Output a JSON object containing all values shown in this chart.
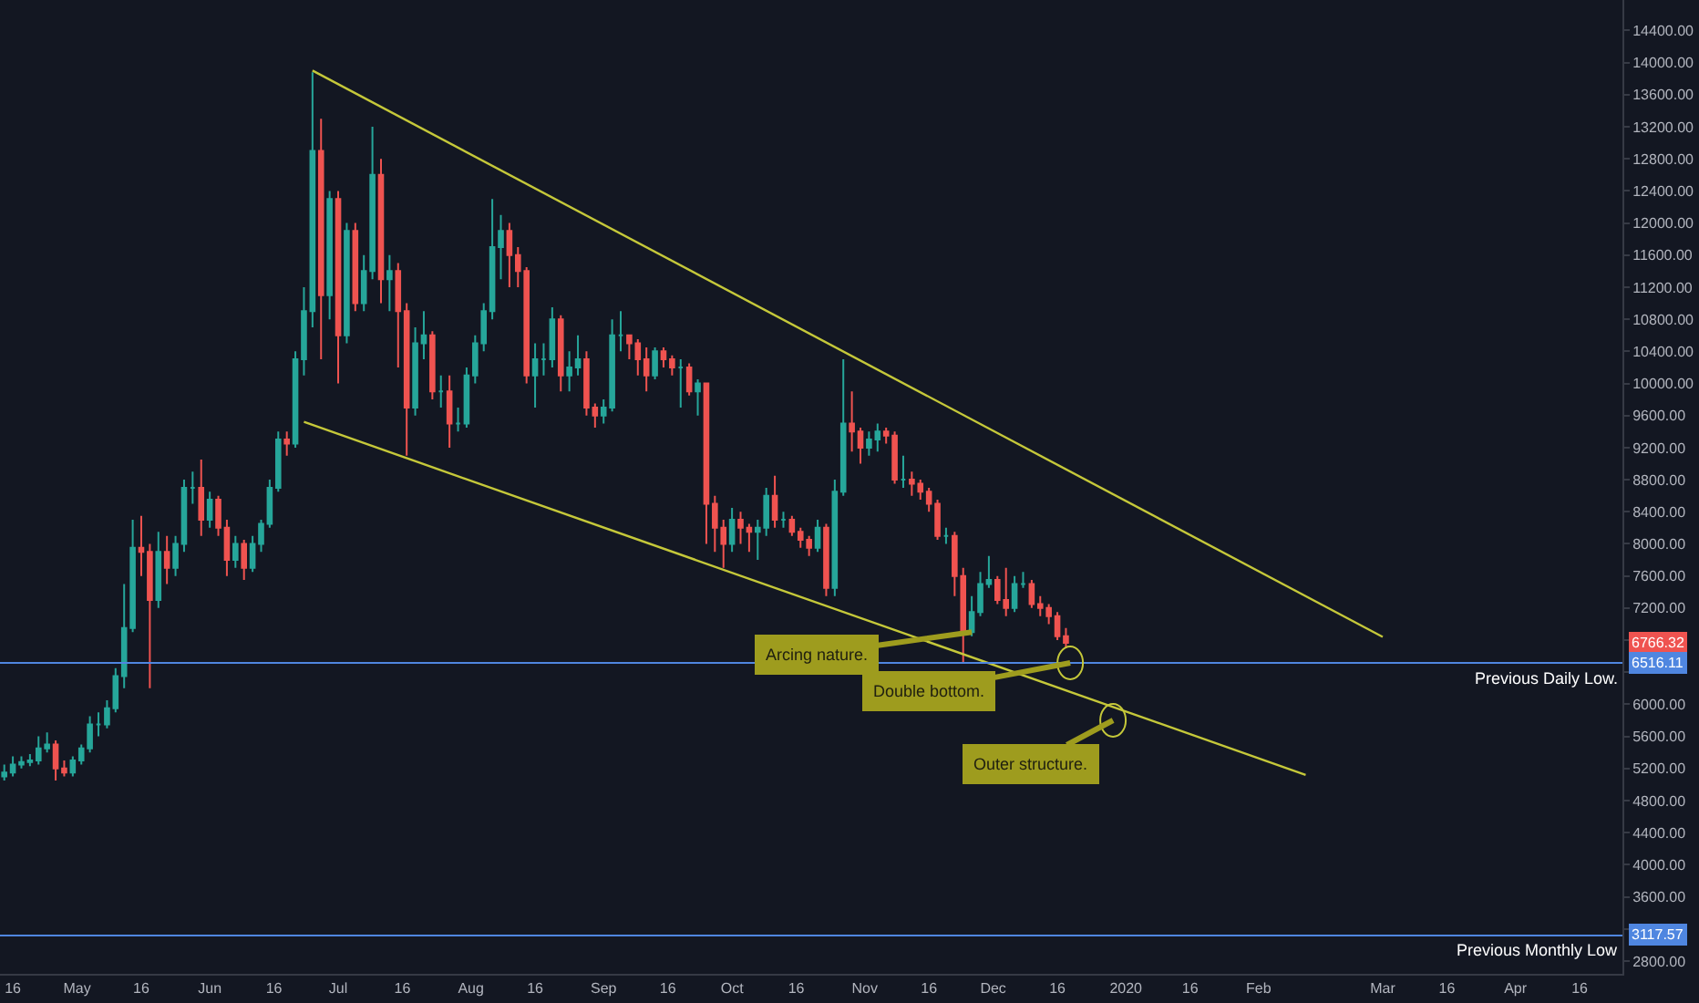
{
  "chart_data": {
    "type": "candlestick",
    "x": [
      "2019-04-14",
      "2019-04-16",
      "2019-04-18",
      "2019-04-20",
      "2019-04-22",
      "2019-04-24",
      "2019-04-26",
      "2019-04-28",
      "2019-04-30",
      "2019-05-02",
      "2019-05-04",
      "2019-05-06",
      "2019-05-08",
      "2019-05-10",
      "2019-05-12",
      "2019-05-14",
      "2019-05-16",
      "2019-05-18",
      "2019-05-20",
      "2019-05-22",
      "2019-05-24",
      "2019-05-26",
      "2019-05-28",
      "2019-05-30",
      "2019-06-01",
      "2019-06-03",
      "2019-06-05",
      "2019-06-07",
      "2019-06-09",
      "2019-06-11",
      "2019-06-13",
      "2019-06-15",
      "2019-06-17",
      "2019-06-19",
      "2019-06-21",
      "2019-06-23",
      "2019-06-25",
      "2019-06-27",
      "2019-06-29",
      "2019-07-01",
      "2019-07-03",
      "2019-07-05",
      "2019-07-07",
      "2019-07-09",
      "2019-07-11",
      "2019-07-13",
      "2019-07-15",
      "2019-07-17",
      "2019-07-19",
      "2019-07-21",
      "2019-07-23",
      "2019-07-25",
      "2019-07-27",
      "2019-07-29",
      "2019-07-31",
      "2019-08-02",
      "2019-08-04",
      "2019-08-06",
      "2019-08-08",
      "2019-08-10",
      "2019-08-12",
      "2019-08-14",
      "2019-08-16",
      "2019-08-18",
      "2019-08-20",
      "2019-08-22",
      "2019-08-24",
      "2019-08-26",
      "2019-08-28",
      "2019-08-30",
      "2019-09-01",
      "2019-09-03",
      "2019-09-05",
      "2019-09-07",
      "2019-09-09",
      "2019-09-11",
      "2019-09-13",
      "2019-09-15",
      "2019-09-17",
      "2019-09-19",
      "2019-09-21",
      "2019-09-23",
      "2019-09-25",
      "2019-09-27",
      "2019-09-29",
      "2019-10-01",
      "2019-10-03",
      "2019-10-05",
      "2019-10-07",
      "2019-10-09",
      "2019-10-11",
      "2019-10-13",
      "2019-10-15",
      "2019-10-17",
      "2019-10-19",
      "2019-10-21",
      "2019-10-23",
      "2019-10-25",
      "2019-10-27",
      "2019-10-29",
      "2019-10-31",
      "2019-11-02",
      "2019-11-04",
      "2019-11-06",
      "2019-11-08",
      "2019-11-10",
      "2019-11-12",
      "2019-11-14",
      "2019-11-16",
      "2019-11-18",
      "2019-11-20",
      "2019-11-22",
      "2019-11-24",
      "2019-11-26",
      "2019-11-28",
      "2019-11-30",
      "2019-12-02",
      "2019-12-04",
      "2019-12-06",
      "2019-12-08",
      "2019-12-10",
      "2019-12-12",
      "2019-12-14",
      "2019-12-16",
      "2019-12-18"
    ],
    "ohlc": [
      [
        5100,
        5250,
        5050,
        5150
      ],
      [
        5150,
        5350,
        5100,
        5250
      ],
      [
        5250,
        5350,
        5200,
        5280
      ],
      [
        5280,
        5380,
        5230,
        5300
      ],
      [
        5300,
        5600,
        5250,
        5450
      ],
      [
        5450,
        5650,
        5400,
        5500
      ],
      [
        5500,
        5550,
        5050,
        5200
      ],
      [
        5200,
        5300,
        5100,
        5150
      ],
      [
        5150,
        5350,
        5100,
        5300
      ],
      [
        5300,
        5500,
        5250,
        5450
      ],
      [
        5450,
        5850,
        5400,
        5750
      ],
      [
        5750,
        5900,
        5600,
        5750
      ],
      [
        5750,
        6050,
        5700,
        5950
      ],
      [
        5950,
        6450,
        5900,
        6350
      ],
      [
        6350,
        7500,
        6200,
        6950
      ],
      [
        6950,
        8300,
        6900,
        7950
      ],
      [
        7950,
        8350,
        7600,
        7900
      ],
      [
        7900,
        8000,
        6200,
        7300
      ],
      [
        7300,
        8150,
        7200,
        7900
      ],
      [
        7900,
        8100,
        7500,
        7700
      ],
      [
        7700,
        8100,
        7600,
        8000
      ],
      [
        8000,
        8800,
        7900,
        8700
      ],
      [
        8700,
        8900,
        8500,
        8700
      ],
      [
        8700,
        9050,
        8100,
        8300
      ],
      [
        8300,
        8650,
        8200,
        8550
      ],
      [
        8550,
        8600,
        8100,
        8200
      ],
      [
        8200,
        8300,
        7600,
        7800
      ],
      [
        7800,
        8100,
        7700,
        8000
      ],
      [
        8000,
        8050,
        7550,
        7700
      ],
      [
        7700,
        8100,
        7650,
        8000
      ],
      [
        8000,
        8300,
        7900,
        8250
      ],
      [
        8250,
        8800,
        8200,
        8700
      ],
      [
        8700,
        9400,
        8650,
        9300
      ],
      [
        9300,
        9400,
        9100,
        9250
      ],
      [
        9250,
        10400,
        9200,
        10300
      ],
      [
        10300,
        11200,
        10100,
        10900
      ],
      [
        10900,
        13880,
        10700,
        12900
      ],
      [
        12900,
        13300,
        10300,
        11100
      ],
      [
        11100,
        12400,
        10800,
        12300
      ],
      [
        12300,
        12400,
        10000,
        10600
      ],
      [
        10600,
        12000,
        10500,
        11900
      ],
      [
        11900,
        12000,
        10900,
        11000
      ],
      [
        11000,
        11600,
        10900,
        11400
      ],
      [
        11400,
        13200,
        11300,
        12600
      ],
      [
        12600,
        12800,
        11000,
        11300
      ],
      [
        11300,
        11600,
        10900,
        11400
      ],
      [
        11400,
        11500,
        10200,
        10900
      ],
      [
        10900,
        11000,
        9100,
        9700
      ],
      [
        9700,
        10700,
        9600,
        10500
      ],
      [
        10500,
        10900,
        10300,
        10600
      ],
      [
        10600,
        10650,
        9800,
        9900
      ],
      [
        9900,
        10100,
        9700,
        9900
      ],
      [
        9900,
        10100,
        9200,
        9500
      ],
      [
        9500,
        9700,
        9400,
        9500
      ],
      [
        9500,
        10200,
        9450,
        10100
      ],
      [
        10100,
        10600,
        10000,
        10500
      ],
      [
        10500,
        11000,
        10400,
        10900
      ],
      [
        10900,
        12300,
        10800,
        11700
      ],
      [
        11700,
        12100,
        11300,
        11900
      ],
      [
        11900,
        12000,
        11200,
        11600
      ],
      [
        11600,
        11700,
        11200,
        11400
      ],
      [
        11400,
        11450,
        10000,
        10100
      ],
      [
        10100,
        10500,
        9700,
        10300
      ],
      [
        10300,
        10500,
        10100,
        10300
      ],
      [
        10300,
        10950,
        10200,
        10800
      ],
      [
        10800,
        10850,
        9900,
        10100
      ],
      [
        10100,
        10400,
        9900,
        10200
      ],
      [
        10200,
        10600,
        10100,
        10300
      ],
      [
        10300,
        10400,
        9600,
        9700
      ],
      [
        9700,
        9750,
        9450,
        9600
      ],
      [
        9600,
        9800,
        9500,
        9700
      ],
      [
        9700,
        10800,
        9650,
        10600
      ],
      [
        10600,
        10900,
        10400,
        10600
      ],
      [
        10600,
        10600,
        10300,
        10500
      ],
      [
        10500,
        10550,
        10100,
        10300
      ],
      [
        10300,
        10450,
        9900,
        10100
      ],
      [
        10100,
        10450,
        10050,
        10400
      ],
      [
        10400,
        10450,
        10200,
        10300
      ],
      [
        10300,
        10350,
        10100,
        10200
      ],
      [
        10200,
        10300,
        9700,
        10200
      ],
      [
        10200,
        10250,
        9850,
        9900
      ],
      [
        9900,
        10050,
        9600,
        10000
      ],
      [
        10000,
        10000,
        8000,
        8500
      ],
      [
        8500,
        8600,
        7900,
        8200
      ],
      [
        8200,
        8300,
        7700,
        8000
      ],
      [
        8000,
        8450,
        7900,
        8300
      ],
      [
        8300,
        8400,
        8000,
        8200
      ],
      [
        8200,
        8250,
        7900,
        8150
      ],
      [
        8150,
        8300,
        7800,
        8200
      ],
      [
        8200,
        8700,
        8100,
        8600
      ],
      [
        8600,
        8850,
        8200,
        8300
      ],
      [
        8300,
        8400,
        8200,
        8300
      ],
      [
        8300,
        8350,
        8100,
        8150
      ],
      [
        8150,
        8200,
        7950,
        8050
      ],
      [
        8050,
        8100,
        7850,
        7950
      ],
      [
        7950,
        8300,
        7900,
        8200
      ],
      [
        8200,
        8250,
        7350,
        7450
      ],
      [
        7450,
        8800,
        7350,
        8650
      ],
      [
        8650,
        10300,
        8600,
        9500
      ],
      [
        9500,
        9900,
        9150,
        9400
      ],
      [
        9400,
        9450,
        9000,
        9200
      ],
      [
        9200,
        9400,
        9100,
        9300
      ],
      [
        9300,
        9500,
        9150,
        9400
      ],
      [
        9400,
        9450,
        9250,
        9350
      ],
      [
        9350,
        9400,
        8750,
        8800
      ],
      [
        8800,
        9100,
        8700,
        8800
      ],
      [
        8800,
        8900,
        8600,
        8750
      ],
      [
        8750,
        8800,
        8550,
        8650
      ],
      [
        8650,
        8700,
        8400,
        8500
      ],
      [
        8500,
        8550,
        8050,
        8100
      ],
      [
        8100,
        8200,
        8000,
        8100
      ],
      [
        8100,
        8150,
        7350,
        7600
      ],
      [
        7600,
        7700,
        6520,
        6900
      ],
      [
        6900,
        7350,
        6850,
        7150
      ],
      [
        7150,
        7650,
        7100,
        7500
      ],
      [
        7500,
        7850,
        7450,
        7550
      ],
      [
        7550,
        7600,
        7250,
        7300
      ],
      [
        7300,
        7700,
        7100,
        7200
      ],
      [
        7200,
        7600,
        7150,
        7500
      ],
      [
        7500,
        7650,
        7450,
        7500
      ],
      [
        7500,
        7550,
        7200,
        7250
      ],
      [
        7250,
        7350,
        7100,
        7200
      ],
      [
        7200,
        7250,
        7000,
        7100
      ],
      [
        7100,
        7150,
        6800,
        6850
      ],
      [
        6850,
        6950,
        6700,
        6766.32
      ]
    ],
    "colors": [
      "#26a69a",
      "#26a69a",
      "#26a69a",
      "#26a69a",
      "#26a69a",
      "#26a69a",
      "#ef5350",
      "#ef5350",
      "#26a69a",
      "#26a69a",
      "#26a69a",
      "#26a69a",
      "#26a69a",
      "#26a69a",
      "#26a69a",
      "#26a69a",
      "#ef5350",
      "#ef5350",
      "#26a69a",
      "#ef5350",
      "#26a69a",
      "#26a69a",
      "#26a69a",
      "#ef5350",
      "#26a69a",
      "#ef5350",
      "#ef5350",
      "#26a69a",
      "#ef5350",
      "#26a69a",
      "#26a69a",
      "#26a69a",
      "#26a69a",
      "#ef5350",
      "#26a69a",
      "#26a69a",
      "#26a69a",
      "#ef5350",
      "#26a69a",
      "#ef5350",
      "#26a69a",
      "#ef5350",
      "#26a69a",
      "#26a69a",
      "#ef5350",
      "#26a69a",
      "#ef5350",
      "#ef5350",
      "#26a69a",
      "#26a69a",
      "#ef5350",
      "#26a69a",
      "#ef5350",
      "#26a69a",
      "#26a69a",
      "#26a69a",
      "#26a69a",
      "#26a69a",
      "#26a69a",
      "#ef5350",
      "#ef5350",
      "#ef5350",
      "#26a69a",
      "#26a69a",
      "#26a69a",
      "#ef5350",
      "#26a69a",
      "#26a69a",
      "#ef5350",
      "#ef5350",
      "#26a69a",
      "#26a69a",
      "#26a69a",
      "#ef5350",
      "#ef5350",
      "#ef5350",
      "#26a69a",
      "#ef5350",
      "#ef5350",
      "#26a69a",
      "#ef5350",
      "#26a69a",
      "#ef5350",
      "#ef5350",
      "#ef5350",
      "#26a69a",
      "#ef5350",
      "#ef5350",
      "#26a69a",
      "#26a69a",
      "#ef5350",
      "#26a69a",
      "#ef5350",
      "#ef5350",
      "#ef5350",
      "#26a69a",
      "#ef5350",
      "#26a69a",
      "#26a69a",
      "#ef5350",
      "#ef5350",
      "#26a69a",
      "#26a69a",
      "#ef5350",
      "#ef5350",
      "#26a69a",
      "#ef5350",
      "#ef5350",
      "#ef5350",
      "#ef5350",
      "#26a69a",
      "#ef5350",
      "#ef5350",
      "#26a69a",
      "#26a69a",
      "#26a69a",
      "#ef5350",
      "#ef5350",
      "#26a69a",
      "#26a69a",
      "#ef5350",
      "#ef5350",
      "#ef5350",
      "#ef5350",
      "#ef5350"
    ],
    "series": [
      {
        "type": "line",
        "color": "#c5c83a",
        "x": [
          "2019-06-25",
          "2020-03-01"
        ],
        "values": [
          13900,
          6840
        ]
      },
      {
        "type": "line",
        "color": "#c5c83a",
        "x": [
          "2019-06-23",
          "2020-02-12"
        ],
        "values": [
          9520,
          5120
        ]
      }
    ],
    "ref_lines": [
      {
        "axis": "y",
        "value": 6516.11,
        "label": "Previous Daily Low.",
        "color": "#4f86e0"
      },
      {
        "axis": "y",
        "value": 3117.57,
        "label": "Previous Monthly Low",
        "color": "#4f86e0"
      }
    ],
    "annotations": [
      {
        "text": "Arcing nature.",
        "x": "2019-11-26",
        "y": 6900
      },
      {
        "text": "Double bottom.",
        "x": "2019-12-19",
        "y": 6516.11
      },
      {
        "text": "Outer structure.",
        "x": "2019-12-29",
        "y": 5800
      },
      {
        "text": "6766.32",
        "y": 6766.32
      },
      {
        "text": "6516.11",
        "y": 6516.11
      },
      {
        "text": "3117.57",
        "y": 3117.57
      }
    ],
    "xlim": [
      "2019-04-13",
      "2020-04-26"
    ],
    "xticks": [
      {
        "value": "2019-04-16",
        "label": "16"
      },
      {
        "value": "2019-05-01",
        "label": "May"
      },
      {
        "value": "2019-05-16",
        "label": "16"
      },
      {
        "value": "2019-06-01",
        "label": "Jun"
      },
      {
        "value": "2019-06-16",
        "label": "16"
      },
      {
        "value": "2019-07-01",
        "label": "Jul"
      },
      {
        "value": "2019-07-16",
        "label": "16"
      },
      {
        "value": "2019-08-01",
        "label": "Aug"
      },
      {
        "value": "2019-08-16",
        "label": "16"
      },
      {
        "value": "2019-09-01",
        "label": "Sep"
      },
      {
        "value": "2019-09-16",
        "label": "16"
      },
      {
        "value": "2019-10-01",
        "label": "Oct"
      },
      {
        "value": "2019-10-16",
        "label": "16"
      },
      {
        "value": "2019-11-01",
        "label": "Nov"
      },
      {
        "value": "2019-11-16",
        "label": "16"
      },
      {
        "value": "2019-12-01",
        "label": "Dec"
      },
      {
        "value": "2019-12-16",
        "label": "16"
      },
      {
        "value": "2020-01-01",
        "label": "2020"
      },
      {
        "value": "2020-01-16",
        "label": "16"
      },
      {
        "value": "2020-02-01",
        "label": "Feb"
      },
      {
        "value": "2020-03-01",
        "label": "Mar"
      },
      {
        "value": "2020-03-16",
        "label": "16"
      },
      {
        "value": "2020-04-01",
        "label": "Apr"
      },
      {
        "value": "2020-04-16",
        "label": "16"
      }
    ],
    "ylim": [
      2640,
      14780
    ],
    "yticks": [
      {
        "value": 2800,
        "label": "2800.00"
      },
      {
        "value": 3200,
        "label": null
      },
      {
        "value": 3600,
        "label": "3600.00"
      },
      {
        "value": 4000,
        "label": "4000.00"
      },
      {
        "value": 4400,
        "label": "4400.00"
      },
      {
        "value": 4800,
        "label": "4800.00"
      },
      {
        "value": 5200,
        "label": "5200.00"
      },
      {
        "value": 5600,
        "label": "5600.00"
      },
      {
        "value": 6000,
        "label": "6000.00"
      },
      {
        "value": 6400,
        "label": null
      },
      {
        "value": 6800,
        "label": null
      },
      {
        "value": 7200,
        "label": "7200.00"
      },
      {
        "value": 7600,
        "label": "7600.00"
      },
      {
        "value": 8000,
        "label": "8000.00"
      },
      {
        "value": 8400,
        "label": "8400.00"
      },
      {
        "value": 8800,
        "label": "8800.00"
      },
      {
        "value": 9200,
        "label": "9200.00"
      },
      {
        "value": 9600,
        "label": "9600.00"
      },
      {
        "value": 10000,
        "label": "10000.00"
      },
      {
        "value": 10400,
        "label": "10400.00"
      },
      {
        "value": 10800,
        "label": "10800.00"
      },
      {
        "value": 11200,
        "label": "11200.00"
      },
      {
        "value": 11600,
        "label": "11600.00"
      },
      {
        "value": 12000,
        "label": "12000.00"
      },
      {
        "value": 12400,
        "label": "12400.00"
      },
      {
        "value": 12800,
        "label": "12800.00"
      },
      {
        "value": 13200,
        "label": "13200.00"
      },
      {
        "value": 13600,
        "label": "13600.00"
      },
      {
        "value": 14000,
        "label": "14000.00"
      },
      {
        "value": 14400,
        "label": "14400.00"
      }
    ]
  }
}
